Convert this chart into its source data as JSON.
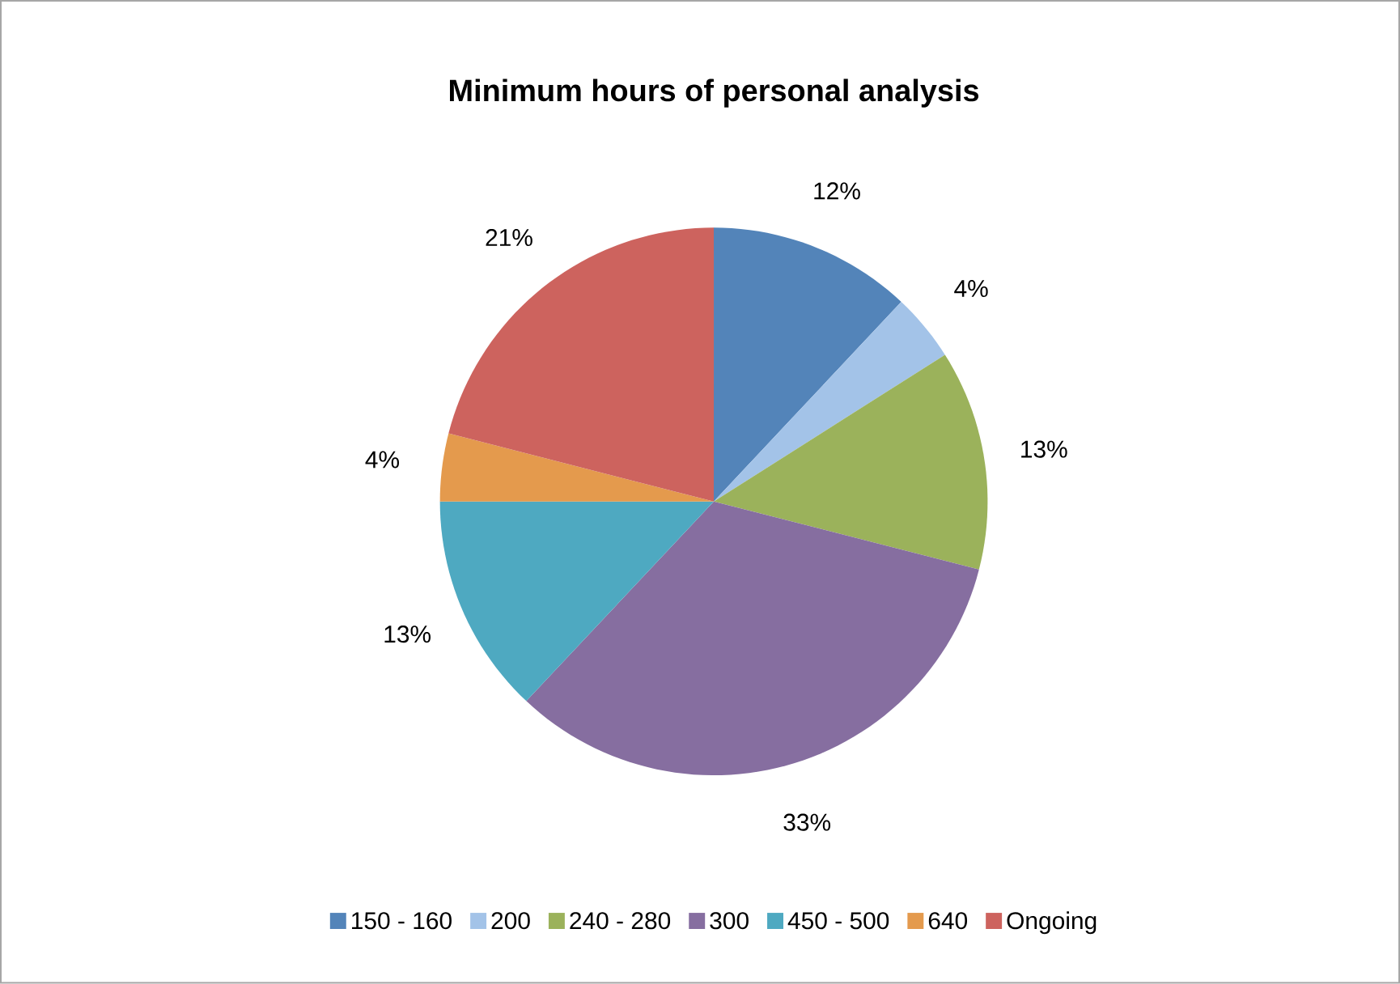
{
  "chart_data": {
    "type": "pie",
    "title": "Minimum hours of personal analysis",
    "categories": [
      "150 - 160",
      "200",
      "240 - 280",
      "300",
      "450 - 500",
      "640",
      "Ongoing"
    ],
    "values": [
      12,
      4,
      13,
      33,
      13,
      4,
      21
    ],
    "value_labels": [
      "12%",
      "4%",
      "13%",
      "33%",
      "13%",
      "4%",
      "21%"
    ],
    "colors": [
      "#5384b9",
      "#a3c3e8",
      "#9bb25b",
      "#866ea0",
      "#4ea9c1",
      "#e49a4d",
      "#cd635e"
    ],
    "legend": "bottom"
  }
}
